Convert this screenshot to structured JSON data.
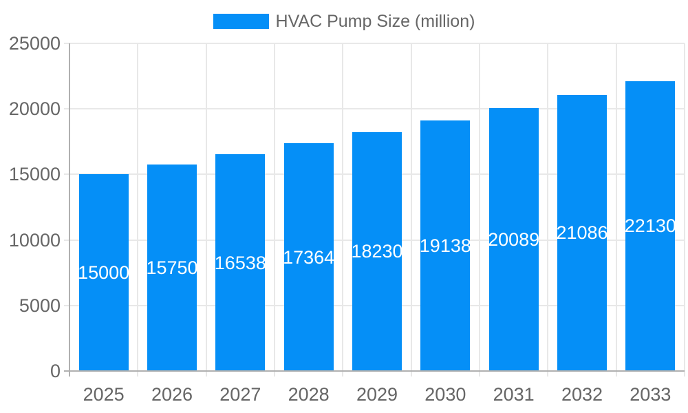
{
  "legend": {
    "label": "HVAC Pump Size (million)"
  },
  "chart_data": {
    "type": "bar",
    "title": "",
    "xlabel": "",
    "ylabel": "",
    "categories": [
      "2025",
      "2026",
      "2027",
      "2028",
      "2029",
      "2030",
      "2031",
      "2032",
      "2033"
    ],
    "values": [
      15000,
      15750,
      16538,
      17364,
      18230,
      19138,
      20089,
      21086,
      22130
    ],
    "series_name": "HVAC Pump Size (million)",
    "ylim": [
      0,
      25000
    ],
    "y_ticks": [
      0,
      5000,
      10000,
      15000,
      20000,
      25000
    ],
    "grid": true,
    "legend_position": "top-center",
    "bar_labels_inside": true,
    "colors": {
      "bar": "#058ff7",
      "bar_label": "#ffffff",
      "axis_text": "#666666",
      "grid_line": "#e8e8e8",
      "axis_line": "#b0b0b0",
      "background": "#ffffff"
    }
  }
}
